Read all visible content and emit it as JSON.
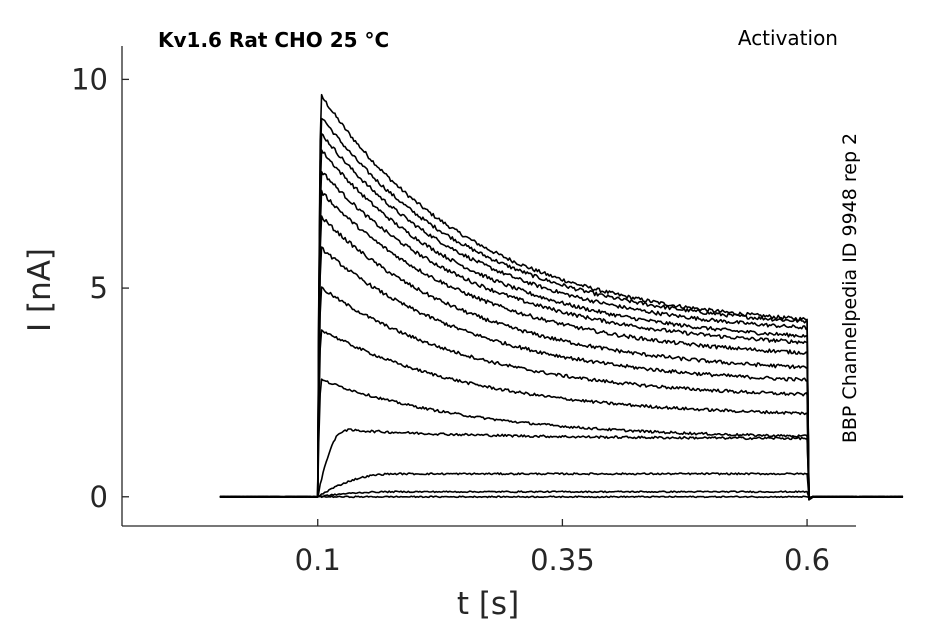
{
  "chart_data": {
    "type": "line",
    "title": "Kv1.6  Rat  CHO  25 °C",
    "corner_label": "Activation",
    "side_label": "BBP Channelpedia ID 9948 rep 2",
    "xlabel": "t [s]",
    "ylabel": "I [nA]",
    "xlim": [
      -0.1,
      0.65
    ],
    "ylim": [
      -0.7,
      10.8
    ],
    "x_ticks": [
      0.1,
      0.35,
      0.6
    ],
    "x_tick_labels": [
      "0.1",
      "0.35",
      "0.6"
    ],
    "y_ticks": [
      0,
      5,
      10
    ],
    "y_tick_labels": [
      "0",
      "5",
      "10"
    ],
    "grid": false,
    "line_color": "#000000",
    "pulse": {
      "start": 0.1,
      "end": 0.6,
      "baseline_start": 0.0,
      "baseline_end": 0.7
    },
    "series": [
      {
        "peak": 9.6,
        "end": 4.25
      },
      {
        "peak": 9.1,
        "end": 4.2
      },
      {
        "peak": 8.7,
        "end": 4.05
      },
      {
        "peak": 8.3,
        "end": 3.85
      },
      {
        "peak": 7.8,
        "end": 3.7
      },
      {
        "peak": 7.3,
        "end": 3.45
      },
      {
        "peak": 6.7,
        "end": 3.1
      },
      {
        "peak": 5.95,
        "end": 2.8
      },
      {
        "peak": 5.0,
        "end": 2.45
      },
      {
        "peak": 4.0,
        "end": 2.0
      },
      {
        "peak": 2.8,
        "end": 1.45
      },
      {
        "peak": 1.6,
        "end": 1.4
      },
      {
        "peak": 0.55,
        "end": 0.55
      },
      {
        "peak": 0.12,
        "end": 0.12
      },
      {
        "peak": 0.0,
        "end": 0.0
      }
    ]
  }
}
